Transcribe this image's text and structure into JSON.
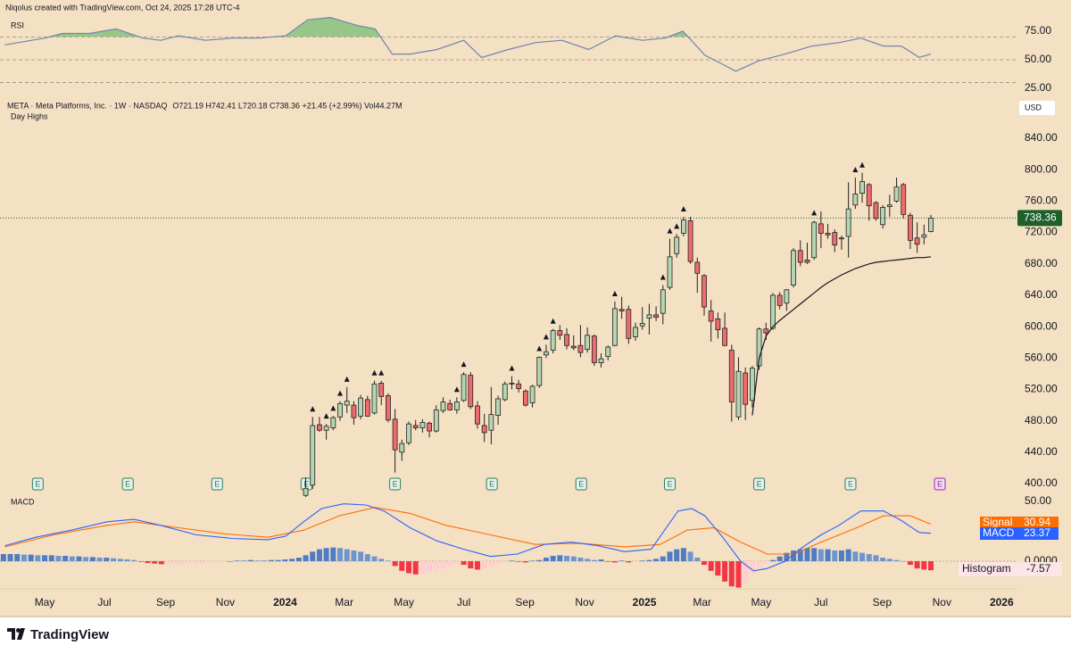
{
  "header": {
    "credit": "Niqolus created with TradingView.com, Oct 24, 2025 17:28 UTC-4",
    "logo": "TradingView"
  },
  "chart_data": [
    {
      "type": "candlestick",
      "title": "META · Meta Platforms, Inc. · 1W · NASDAQ",
      "legend_values": "O721.19 H742.41 L720.18 C738.36 +21.45 (+2.99%) Vol44.27M",
      "subtitle": "Day Highs",
      "currency": "USD",
      "x": [
        38,
        39,
        40,
        41,
        42,
        43,
        44,
        45,
        46,
        47,
        48,
        49,
        50,
        51,
        52,
        53,
        54,
        55,
        56,
        57,
        58,
        59,
        60,
        61,
        62,
        63,
        64,
        65,
        66,
        67,
        68,
        69,
        70,
        71,
        72,
        73,
        74,
        75,
        76,
        77,
        78,
        79,
        80,
        81,
        82,
        83,
        84,
        85,
        86,
        87,
        88,
        89,
        90,
        91,
        92,
        93,
        94,
        95,
        96,
        97,
        98,
        99,
        100,
        101,
        102,
        103,
        104,
        105,
        106,
        107,
        108,
        109,
        110,
        111,
        112,
        113,
        114,
        115,
        116,
        117,
        118,
        119,
        120,
        121,
        122,
        123,
        124,
        125,
        126,
        127,
        128,
        129
      ],
      "open": [
        385,
        398,
        475,
        468,
        471,
        485,
        500,
        500,
        486,
        507,
        490,
        528,
        512,
        482,
        440,
        452,
        474,
        471,
        477,
        467,
        493,
        502,
        494,
        506,
        538,
        499,
        474,
        468,
        487,
        507,
        528,
        527,
        518,
        503,
        525,
        564,
        570,
        595,
        590,
        575,
        576,
        571,
        588,
        554,
        562,
        576,
        622,
        622,
        587,
        601,
        611,
        615,
        617,
        650,
        693,
        719,
        735,
        682,
        665,
        620,
        610,
        598,
        570,
        485,
        541,
        506,
        550,
        597,
        598,
        640,
        630,
        653,
        697,
        685,
        688,
        731,
        719,
        720,
        712,
        715,
        755,
        770,
        781,
        758,
        730,
        753,
        760,
        781,
        742,
        713,
        714,
        721.19
      ],
      "high": [
        408,
        485,
        485,
        476,
        486,
        505,
        523,
        505,
        513,
        512,
        531,
        531,
        515,
        495,
        456,
        479,
        481,
        482,
        479,
        500,
        510,
        507,
        510,
        542,
        542,
        505,
        489,
        523,
        512,
        530,
        537,
        532,
        520,
        526,
        562,
        577,
        597,
        602,
        598,
        589,
        602,
        599,
        590,
        566,
        576,
        632,
        638,
        627,
        605,
        625,
        629,
        626,
        653,
        712,
        718,
        740,
        740,
        688,
        667,
        634,
        618,
        618,
        577,
        561,
        548,
        550,
        599,
        605,
        643,
        644,
        648,
        700,
        710,
        707,
        735,
        747,
        731,
        724,
        716,
        784,
        790,
        796,
        783,
        760,
        755,
        768,
        790,
        783,
        745,
        733,
        730,
        742.41
      ],
      "low": [
        383,
        393,
        466,
        456,
        468,
        480,
        490,
        475,
        482,
        485,
        488,
        500,
        478,
        414,
        429,
        449,
        468,
        465,
        459,
        465,
        490,
        493,
        489,
        504,
        495,
        470,
        453,
        450,
        475,
        505,
        520,
        516,
        498,
        497,
        522,
        560,
        566,
        583,
        571,
        570,
        561,
        567,
        550,
        548,
        557,
        575,
        610,
        578,
        582,
        596,
        590,
        607,
        603,
        647,
        688,
        715,
        680,
        643,
        614,
        581,
        585,
        575,
        479,
        481,
        481,
        497,
        545,
        583,
        596,
        622,
        620,
        650,
        677,
        680,
        685,
        700,
        712,
        695,
        698,
        688,
        750,
        758,
        735,
        735,
        725,
        740,
        758,
        738,
        699,
        694,
        705,
        720.18
      ],
      "close": [
        394,
        474,
        468,
        473,
        484,
        502,
        505,
        484,
        509,
        486,
        527,
        511,
        481,
        443,
        451,
        476,
        471,
        478,
        467,
        494,
        504,
        494,
        504,
        539,
        498,
        476,
        465,
        488,
        508,
        527,
        528,
        521,
        500,
        524,
        561,
        568,
        595,
        589,
        576,
        573,
        567,
        589,
        554,
        559,
        574,
        623,
        620,
        585,
        599,
        604,
        615,
        612,
        647,
        689,
        714,
        736,
        683,
        668,
        625,
        607,
        596,
        576,
        504,
        543,
        501,
        547,
        597,
        592,
        640,
        627,
        647,
        697,
        682,
        682,
        733,
        719,
        717,
        704,
        713,
        750,
        769,
        785,
        754,
        738,
        752,
        755,
        778,
        743,
        710,
        705,
        717,
        738.36
      ],
      "up_color": "#b5d6b2",
      "down_color": "#ee6b6e",
      "ma": {
        "color": "#131722",
        "values": [
          null,
          null,
          null,
          null,
          null,
          null,
          null,
          null,
          null,
          null,
          null,
          null,
          null,
          null,
          null,
          null,
          null,
          null,
          null,
          null,
          null,
          null,
          null,
          null,
          null,
          null,
          null,
          null,
          null,
          null,
          null,
          null,
          null,
          null,
          null,
          null,
          null,
          null,
          null,
          null,
          null,
          null,
          null,
          null,
          null,
          null,
          null,
          null,
          null,
          null,
          null,
          null,
          null,
          null,
          null,
          null,
          null,
          null,
          null,
          null,
          null,
          null,
          null,
          null,
          null,
          487,
          560,
          588,
          600,
          608,
          615,
          622,
          629,
          636,
          643,
          650,
          656,
          661,
          666,
          670,
          674,
          677,
          680,
          682,
          683,
          684,
          685,
          686,
          687,
          688,
          688,
          689
        ]
      },
      "day_highs": [
        1,
        3,
        4,
        5,
        6,
        10,
        11,
        22,
        23,
        30,
        34,
        35,
        36,
        45,
        52,
        53,
        54,
        55,
        74,
        80,
        81
      ],
      "earnings": {
        "label": "E",
        "x": [
          -1.0,
          12.1,
          25.1,
          38.1,
          51.0,
          65.1,
          78.1,
          91.0,
          104.0,
          117.3,
          130.3
        ]
      },
      "last_price": 738.36,
      "last_color": "#1e5f2a",
      "xlim": [
        -6.5,
        141.6
      ],
      "ylim": [
        387.5,
        896.9
      ],
      "yticks": [
        {
          "value": 400,
          "label": "400.00"
        },
        {
          "value": 440,
          "label": "440.00"
        },
        {
          "value": 480,
          "label": "480.00"
        },
        {
          "value": 520,
          "label": "520.00"
        },
        {
          "value": 560,
          "label": "560.00"
        },
        {
          "value": 600,
          "label": "600.00"
        },
        {
          "value": 640,
          "label": "640.00"
        },
        {
          "value": 680,
          "label": "680.00"
        },
        {
          "value": 720,
          "label": "720.00"
        },
        {
          "value": 760,
          "label": "760.00"
        },
        {
          "value": 800,
          "label": "800.00"
        },
        {
          "value": 840,
          "label": "840.00"
        }
      ]
    },
    {
      "type": "line",
      "title": "RSI",
      "x": [
        -5.8,
        0,
        2.6,
        6.5,
        10.4,
        14.3,
        16.9,
        19.5,
        23.4,
        27.3,
        31.2,
        35.1,
        38.3,
        41.6,
        45.5,
        48.1,
        50.6,
        53.2,
        57.1,
        61.0,
        63.6,
        67.5,
        71.4,
        75.3,
        79.2,
        83.1,
        87.0,
        90.3,
        92.9,
        96.1,
        98.7,
        100.6,
        103.9,
        107.8,
        111.7,
        115.6,
        118.8,
        122.1,
        124.7,
        127.3,
        129
      ],
      "values": [
        63,
        69,
        73,
        73,
        77,
        69,
        67,
        71,
        67,
        69,
        69,
        71,
        85,
        87,
        80,
        77,
        55,
        55,
        59,
        67,
        52,
        59,
        65,
        67,
        59,
        71,
        67,
        69,
        75,
        54,
        46,
        40,
        49,
        55,
        62,
        65,
        69,
        62,
        62,
        52,
        55
      ],
      "color": "#7083b0",
      "fill_color": "#7fbf7a",
      "bands": [
        70,
        50,
        30
      ],
      "xlim": [
        -6.5,
        141.6
      ],
      "ylim": [
        20.3,
        86.7
      ],
      "yticks": [
        {
          "value": 25,
          "label": "25.00"
        },
        {
          "value": 50,
          "label": "50.00"
        },
        {
          "value": 75,
          "label": "75.00"
        }
      ]
    },
    {
      "type": "macd",
      "title": "MACD",
      "xlim": [
        -6.5,
        141.6
      ],
      "xticks": [
        {
          "value": 0,
          "label": "May"
        },
        {
          "value": 8.7,
          "label": "Jul"
        },
        {
          "value": 17.6,
          "label": "Sep"
        },
        {
          "value": 26.3,
          "label": "Nov"
        },
        {
          "value": 35.0,
          "label": "2024"
        },
        {
          "value": 43.6,
          "label": "Mar"
        },
        {
          "value": 52.3,
          "label": "May"
        },
        {
          "value": 61.0,
          "label": "Jul"
        },
        {
          "value": 69.9,
          "label": "Sep"
        },
        {
          "value": 78.6,
          "label": "Nov"
        },
        {
          "value": 87.3,
          "label": "2025"
        },
        {
          "value": 95.7,
          "label": "Mar"
        },
        {
          "value": 104.3,
          "label": "May"
        },
        {
          "value": 113.0,
          "label": "Jul"
        },
        {
          "value": 121.9,
          "label": "Sep"
        },
        {
          "value": 130.6,
          "label": "Nov"
        },
        {
          "value": 139.3,
          "label": "2026"
        }
      ],
      "ylim": [
        -23.1,
        55.2
      ],
      "yticks": [
        {
          "value": 50,
          "label": "50.00"
        },
        {
          "value": 0,
          "label": "0.0000"
        }
      ],
      "series": [
        {
          "name": "Signal",
          "color": "#ff6d00",
          "x": [
            -5.8,
            1.3,
            9.1,
            13.0,
            19.5,
            26.0,
            32.5,
            37.7,
            42.9,
            48.1,
            53.2,
            58.4,
            64.9,
            71.4,
            77.9,
            84.4,
            89.6,
            93.5,
            97.4,
            101.3,
            105.2,
            109.1,
            113.0,
            118.2,
            122.1,
            126.0,
            129
          ],
          "values": [
            12,
            22,
            30,
            33,
            28,
            23,
            20,
            26,
            38,
            45,
            40,
            30,
            22,
            14,
            15,
            12,
            14,
            26,
            28,
            16,
            6,
            6,
            16,
            28,
            38,
            38,
            30.94
          ]
        },
        {
          "name": "MACD",
          "color": "#2962ff",
          "x": [
            -5.8,
            -1.3,
            3.9,
            9.1,
            13.0,
            16.9,
            22.1,
            27.3,
            32.5,
            35.1,
            37.7,
            40.3,
            43.5,
            46.8,
            49.4,
            53.2,
            57.1,
            61.0,
            64.9,
            68.8,
            72.7,
            76.6,
            80.5,
            84.4,
            88.3,
            92.2,
            94.2,
            96.1,
            98.7,
            101.3,
            103.2,
            105.2,
            107.8,
            110.4,
            113.0,
            115.6,
            118.8,
            122.1,
            124.7,
            127.3,
            129
          ],
          "values": [
            13,
            20,
            26,
            33,
            35,
            30,
            22,
            19,
            18,
            21,
            33,
            44,
            48,
            47,
            42,
            28,
            17,
            10,
            4,
            6,
            14,
            16,
            13,
            8,
            10,
            42,
            44,
            38,
            20,
            0,
            -8,
            -6,
            0,
            12,
            22,
            30,
            42,
            42,
            34,
            24,
            23.37
          ]
        }
      ],
      "histogram": {
        "name": "Histogram",
        "x": [
          -6,
          -5,
          -4,
          -3,
          -2,
          -1,
          0,
          1,
          2,
          3,
          4,
          5,
          6,
          7,
          8,
          9,
          10,
          11,
          12,
          13,
          14,
          15,
          16,
          17,
          18,
          19,
          20,
          21,
          22,
          23,
          24,
          25,
          26,
          27,
          28,
          29,
          30,
          31,
          32,
          33,
          34,
          35,
          36,
          37,
          38,
          39,
          40,
          41,
          42,
          43,
          44,
          45,
          46,
          47,
          48,
          49,
          50,
          51,
          52,
          53,
          54,
          55,
          56,
          57,
          58,
          59,
          60,
          61,
          62,
          63,
          64,
          65,
          66,
          67,
          68,
          69,
          70,
          71,
          72,
          73,
          74,
          75,
          76,
          77,
          78,
          79,
          80,
          81,
          82,
          83,
          84,
          85,
          86,
          87,
          88,
          89,
          90,
          91,
          92,
          93,
          94,
          95,
          96,
          97,
          98,
          99,
          100,
          101,
          102,
          103,
          104,
          105,
          106,
          107,
          108,
          109,
          110,
          111,
          112,
          113,
          114,
          115,
          116,
          117,
          118,
          119,
          120,
          121,
          122,
          123,
          124,
          125,
          126,
          127,
          128,
          129
        ],
        "values": [
          6,
          6,
          6,
          5.5,
          5.5,
          5,
          5,
          5,
          4.5,
          4.5,
          4,
          4,
          3.5,
          3.5,
          3,
          3,
          2.5,
          2,
          1.5,
          1,
          -0.5,
          -1.5,
          -2,
          -2.5,
          -2.5,
          -2.5,
          -2.5,
          -2,
          -2,
          -1.5,
          -1,
          -1,
          -0.5,
          0,
          0.5,
          0.5,
          1,
          0.5,
          0.5,
          1,
          1,
          1.5,
          2,
          3,
          5,
          8,
          10,
          11,
          11.5,
          11,
          10,
          9,
          8,
          6,
          4,
          2,
          0.5,
          -4,
          -8,
          -10,
          -11,
          -10,
          -9,
          -8,
          -6,
          -4,
          -2,
          -3,
          -6,
          -7,
          -6,
          -4,
          -2,
          -1,
          0.5,
          -0.5,
          -1,
          0.5,
          1,
          3,
          4.5,
          5,
          4.5,
          4,
          3,
          2,
          1,
          1.5,
          -0.5,
          -1,
          0.5,
          -1,
          -0.5,
          0.5,
          1,
          2,
          4,
          8,
          10,
          11,
          8,
          3,
          -3,
          -8,
          -12,
          -17,
          -21,
          -22,
          -18,
          -10,
          -5,
          -2,
          1,
          4,
          7,
          9,
          10,
          11,
          11,
          10,
          10,
          9,
          9,
          10,
          8,
          7,
          6,
          5,
          3,
          2,
          1,
          0,
          -3,
          -6,
          -7,
          -7.57
        ],
        "colors": {
          "pos_rising": "#4f7cc4",
          "pos_falling": "#6f95d1",
          "neg_falling": "#f23645",
          "neg_rising": "#ffcdd2"
        }
      }
    }
  ]
}
